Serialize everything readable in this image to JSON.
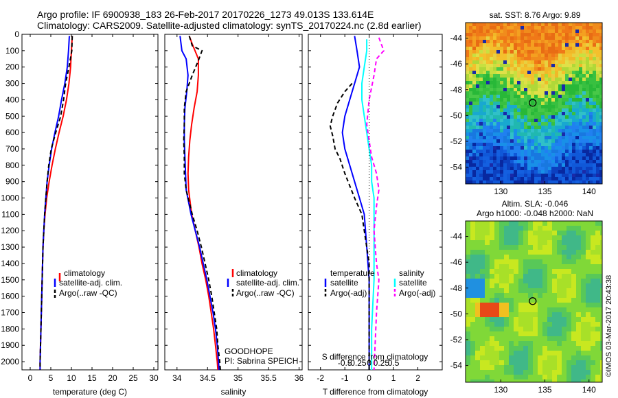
{
  "header": {
    "line1": "Argo profile: IF 6900938_183 26-Feb-2017 20170226_1273 49.013S 133.614E",
    "line2": "Climatology: CARS2009. Satellite-adjusted climatology: synTS_20170224.nc (2.8d earlier)"
  },
  "colors": {
    "climatology": "#ff0000",
    "satellite": "#0000ff",
    "argo": "#000000",
    "sat_salinity": "#00ffff",
    "argo_salinity": "#ff00ff"
  },
  "chart_data": [
    {
      "type": "line",
      "name": "temperature-profile",
      "xlabel": "temperature (deg C)",
      "xticks": [
        0,
        5,
        10,
        15,
        20,
        25,
        30
      ],
      "xlim": [
        -2,
        31
      ],
      "ylim": [
        2050,
        0
      ],
      "yticks": [
        0,
        100,
        200,
        300,
        400,
        500,
        600,
        700,
        800,
        900,
        1000,
        1100,
        1200,
        1300,
        1400,
        1500,
        1600,
        1700,
        1800,
        1900,
        2000
      ],
      "legend": [
        "climatology",
        "satellite-adj. clim.",
        "Argo(..raw -QC)"
      ],
      "series": [
        {
          "name": "climatology",
          "style": "solid",
          "color": "#ff0000",
          "points": [
            [
              10.2,
              10
            ],
            [
              10.0,
              100
            ],
            [
              9.8,
              200
            ],
            [
              9.4,
              300
            ],
            [
              8.8,
              400
            ],
            [
              8.0,
              500
            ],
            [
              7.0,
              600
            ],
            [
              6.1,
              700
            ],
            [
              5.3,
              800
            ],
            [
              4.6,
              900
            ],
            [
              4.0,
              1000
            ],
            [
              3.6,
              1100
            ],
            [
              3.3,
              1200
            ],
            [
              3.1,
              1300
            ],
            [
              3.0,
              1400
            ],
            [
              2.9,
              1500
            ],
            [
              2.8,
              1600
            ],
            [
              2.7,
              1700
            ],
            [
              2.6,
              1800
            ],
            [
              2.5,
              1900
            ],
            [
              2.4,
              2000
            ],
            [
              2.4,
              2050
            ]
          ]
        },
        {
          "name": "satellite-adj. clim.",
          "style": "solid",
          "color": "#0000ff",
          "points": [
            [
              9.5,
              10
            ],
            [
              9.3,
              100
            ],
            [
              9.0,
              200
            ],
            [
              8.4,
              300
            ],
            [
              7.6,
              400
            ],
            [
              6.9,
              500
            ],
            [
              6.0,
              600
            ],
            [
              5.2,
              700
            ],
            [
              4.6,
              800
            ],
            [
              4.1,
              900
            ],
            [
              3.8,
              1000
            ],
            [
              3.5,
              1100
            ],
            [
              3.3,
              1200
            ],
            [
              3.1,
              1300
            ],
            [
              3.0,
              1400
            ],
            [
              2.9,
              1500
            ],
            [
              2.8,
              1600
            ],
            [
              2.7,
              1700
            ],
            [
              2.6,
              1800
            ],
            [
              2.5,
              1900
            ],
            [
              2.4,
              2000
            ],
            [
              2.4,
              2050
            ]
          ]
        },
        {
          "name": "Argo(..raw -QC)",
          "style": "dashed",
          "color": "#000000",
          "points": [
            [
              10.2,
              10
            ],
            [
              10.1,
              100
            ],
            [
              9.4,
              200
            ],
            [
              8.6,
              300
            ],
            [
              8.1,
              400
            ],
            [
              7.4,
              500
            ],
            [
              6.2,
              600
            ],
            [
              5.1,
              700
            ],
            [
              4.5,
              800
            ],
            [
              4.1,
              900
            ],
            [
              3.8,
              1000
            ],
            [
              3.5,
              1100
            ],
            [
              3.3,
              1200
            ],
            [
              3.1,
              1300
            ],
            [
              3.0,
              1400
            ],
            [
              2.9,
              1500
            ],
            [
              2.8,
              1600
            ],
            [
              2.7,
              1700
            ],
            [
              2.6,
              1800
            ],
            [
              2.5,
              1900
            ],
            [
              2.4,
              2000
            ],
            [
              2.4,
              2050
            ]
          ]
        }
      ]
    },
    {
      "type": "line",
      "name": "salinity-profile",
      "xlabel": "salinity",
      "xticks": [
        34,
        34.5,
        35,
        35.5,
        36
      ],
      "xlim": [
        33.8,
        36.05
      ],
      "ylim": [
        2050,
        0
      ],
      "legend": [
        "climatology",
        "satellite-adj. clim.",
        "Argo(..raw -QC)"
      ],
      "annotation": [
        "GOODHOPE",
        "PI: Sabrina SPEICH"
      ],
      "series": [
        {
          "name": "climatology",
          "style": "solid",
          "color": "#ff0000",
          "points": [
            [
              34.2,
              10
            ],
            [
              34.25,
              60
            ],
            [
              34.35,
              150
            ],
            [
              34.35,
              250
            ],
            [
              34.33,
              350
            ],
            [
              34.28,
              450
            ],
            [
              34.24,
              550
            ],
            [
              34.21,
              650
            ],
            [
              34.19,
              750
            ],
            [
              34.18,
              850
            ],
            [
              34.19,
              950
            ],
            [
              34.24,
              1100
            ],
            [
              34.3,
              1200
            ],
            [
              34.36,
              1300
            ],
            [
              34.41,
              1400
            ],
            [
              34.47,
              1500
            ],
            [
              34.52,
              1600
            ],
            [
              34.56,
              1700
            ],
            [
              34.6,
              1800
            ],
            [
              34.63,
              1900
            ],
            [
              34.66,
              2000
            ],
            [
              34.67,
              2050
            ]
          ]
        },
        {
          "name": "satellite-adj. clim.",
          "style": "solid",
          "color": "#0000ff",
          "points": [
            [
              34.05,
              10
            ],
            [
              34.08,
              100
            ],
            [
              34.15,
              150
            ],
            [
              34.18,
              250
            ],
            [
              34.16,
              350
            ],
            [
              34.13,
              450
            ],
            [
              34.12,
              550
            ],
            [
              34.12,
              650
            ],
            [
              34.13,
              750
            ],
            [
              34.14,
              850
            ],
            [
              34.15,
              950
            ],
            [
              34.23,
              1100
            ],
            [
              34.3,
              1200
            ],
            [
              34.37,
              1300
            ],
            [
              34.43,
              1400
            ],
            [
              34.49,
              1500
            ],
            [
              34.54,
              1600
            ],
            [
              34.59,
              1700
            ],
            [
              34.63,
              1800
            ],
            [
              34.66,
              1900
            ],
            [
              34.68,
              2000
            ],
            [
              34.69,
              2050
            ]
          ]
        },
        {
          "name": "Argo(..raw -QC)",
          "style": "dashed",
          "color": "#000000",
          "points": [
            [
              34.2,
              10
            ],
            [
              34.25,
              70
            ],
            [
              34.41,
              100
            ],
            [
              34.35,
              160
            ],
            [
              34.25,
              250
            ],
            [
              34.15,
              350
            ],
            [
              34.12,
              450
            ],
            [
              34.12,
              550
            ],
            [
              34.11,
              650
            ],
            [
              34.12,
              750
            ],
            [
              34.12,
              850
            ],
            [
              34.15,
              950
            ],
            [
              34.25,
              1100
            ],
            [
              34.33,
              1200
            ],
            [
              34.4,
              1300
            ],
            [
              34.46,
              1400
            ],
            [
              34.52,
              1500
            ],
            [
              34.57,
              1600
            ],
            [
              34.61,
              1700
            ],
            [
              34.65,
              1800
            ],
            [
              34.67,
              1900
            ],
            [
              34.7,
              2000
            ],
            [
              34.71,
              2050
            ]
          ]
        }
      ]
    },
    {
      "type": "line",
      "name": "difference-profile",
      "xlabel": "T difference from climatology",
      "xticks": [
        -2,
        -1,
        0,
        1,
        2
      ],
      "sublabel": "S difference from climatology",
      "subticks": [
        "-0.5",
        "-0.25",
        "0",
        "0.25",
        "0.5"
      ],
      "xlim": [
        -2.5,
        3.0
      ],
      "ylim": [
        2050,
        0
      ],
      "legend_temperature": [
        "temperature",
        "satellite",
        "Argo(-adj)"
      ],
      "legend_salinity": [
        "salinity",
        "satellite",
        "Argo(-adj)"
      ],
      "series": [
        {
          "name": "temperature satellite",
          "style": "solid",
          "color": "#0000ff",
          "points": [
            [
              -0.6,
              10
            ],
            [
              -0.5,
              100
            ],
            [
              -0.4,
              200
            ],
            [
              -0.6,
              300
            ],
            [
              -0.8,
              400
            ],
            [
              -1.0,
              500
            ],
            [
              -1.1,
              600
            ],
            [
              -1.0,
              700
            ],
            [
              -0.8,
              800
            ],
            [
              -0.6,
              900
            ],
            [
              -0.4,
              1000
            ],
            [
              -0.2,
              1100
            ],
            [
              -0.1,
              1300
            ],
            [
              0,
              1500
            ],
            [
              0,
              1800
            ],
            [
              0,
              2050
            ]
          ]
        },
        {
          "name": "salinity satellite",
          "style": "solid",
          "color": "#00ffff",
          "points": [
            [
              -0.1,
              30
            ],
            [
              -0.1,
              100
            ],
            [
              -0.2,
              200
            ],
            [
              -0.3,
              300
            ],
            [
              -0.3,
              400
            ],
            [
              -0.2,
              500
            ],
            [
              -0.1,
              600
            ],
            [
              0,
              700
            ],
            [
              0.1,
              800
            ],
            [
              0.1,
              900
            ],
            [
              0.2,
              1000
            ],
            [
              0.2,
              1200
            ],
            [
              0.2,
              1500
            ],
            [
              0.1,
              1800
            ],
            [
              0.1,
              2050
            ]
          ]
        },
        {
          "name": "temperature Argo(-adj)",
          "style": "dashed",
          "color": "#000000",
          "points": [
            [
              -0.7,
              300
            ],
            [
              -1.0,
              350
            ],
            [
              -1.3,
              420
            ],
            [
              -1.5,
              500
            ],
            [
              -1.6,
              560
            ],
            [
              -1.5,
              620
            ],
            [
              -1.4,
              700
            ],
            [
              -1.2,
              760
            ],
            [
              -1.0,
              850
            ],
            [
              -0.6,
              1000
            ],
            [
              -0.3,
              1100
            ],
            [
              -0.2,
              1200
            ],
            [
              0,
              1400
            ],
            [
              0,
              1600
            ],
            [
              0,
              2050
            ]
          ]
        },
        {
          "name": "salinity Argo(-adj)",
          "style": "dashed",
          "color": "#ff00ff",
          "points": [
            [
              0.4,
              20
            ],
            [
              0.6,
              100
            ],
            [
              0.3,
              150
            ],
            [
              0.2,
              250
            ],
            [
              0,
              400
            ],
            [
              -0.1,
              550
            ],
            [
              0,
              650
            ],
            [
              0.1,
              750
            ],
            [
              0.3,
              850
            ],
            [
              0.4,
              950
            ],
            [
              0.3,
              1050
            ],
            [
              0.2,
              1200
            ],
            [
              0.3,
              1400
            ],
            [
              0.4,
              1500
            ],
            [
              0.3,
              1700
            ],
            [
              0.2,
              2050
            ]
          ]
        }
      ]
    },
    {
      "type": "heatmap",
      "name": "sst-map",
      "title": "sat. SST: 8.76 Argo: 9.89",
      "xticks": [
        130,
        135,
        140
      ],
      "yticks": [
        -44,
        -46,
        -48,
        -50,
        -52,
        -54
      ],
      "xlim": [
        126,
        141.5
      ],
      "ylim": [
        -55.3,
        -42.8
      ],
      "marker": {
        "lon": 133.614,
        "lat": -49.013
      }
    },
    {
      "type": "heatmap",
      "name": "sla-map",
      "title_line1": "Altim. SLA: -0.046",
      "title_line2": "Argo h1000: -0.048 h2000: NaN",
      "xticks": [
        130,
        135,
        140
      ],
      "yticks": [
        -44,
        -46,
        -48,
        -50,
        -52,
        -54
      ],
      "xlim": [
        126,
        141.5
      ],
      "ylim": [
        -55.3,
        -42.8
      ],
      "marker": {
        "lon": 133.614,
        "lat": -49.013
      },
      "watermark": "©IMOS 03-Mar-2017 20:43:38"
    }
  ]
}
